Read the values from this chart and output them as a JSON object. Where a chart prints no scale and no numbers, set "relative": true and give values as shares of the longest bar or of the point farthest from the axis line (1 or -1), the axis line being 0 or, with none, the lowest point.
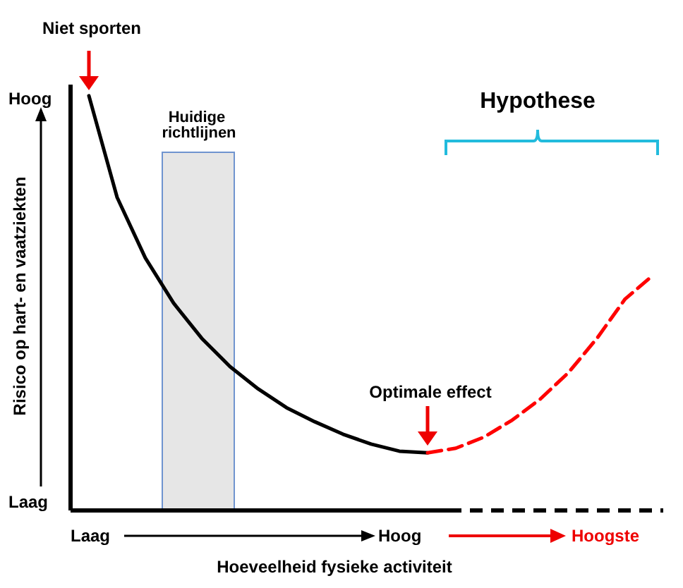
{
  "chart_data": {
    "type": "line",
    "relative": true,
    "xlabel": "Hoeveelheid fysieke activiteit",
    "ylabel": "Risico op hart- en vaatziekten",
    "categories": [
      null,
      null,
      null,
      null,
      null,
      null,
      null,
      null,
      null,
      null,
      null,
      null,
      null,
      null,
      null,
      null,
      null,
      null,
      null,
      null,
      null,
      null
    ],
    "series": [
      {
        "color": "#000000",
        "line_style": "solid",
        "values": [
          null,
          1.0,
          0.755,
          0.609,
          0.5,
          0.415,
          0.347,
          0.293,
          0.248,
          0.214,
          0.184,
          0.16,
          0.143,
          0.139,
          null,
          null,
          null,
          null,
          null,
          null,
          null,
          null
        ]
      },
      {
        "color": "#ff0000",
        "line_style": "dashed",
        "values": [
          null,
          null,
          null,
          null,
          null,
          null,
          null,
          null,
          null,
          null,
          null,
          null,
          null,
          0.139,
          0.15,
          0.177,
          0.218,
          0.269,
          0.333,
          0.415,
          0.51,
          0.568
        ]
      }
    ],
    "annotations": [
      "Niet sporten",
      "Optimale effect",
      "Hypothese",
      "Hoog",
      "Laag",
      "Laag",
      "Hoog",
      "Hoogste",
      "Huidige richtlijnen"
    ],
    "marker": "none",
    "grid": false
  }
}
